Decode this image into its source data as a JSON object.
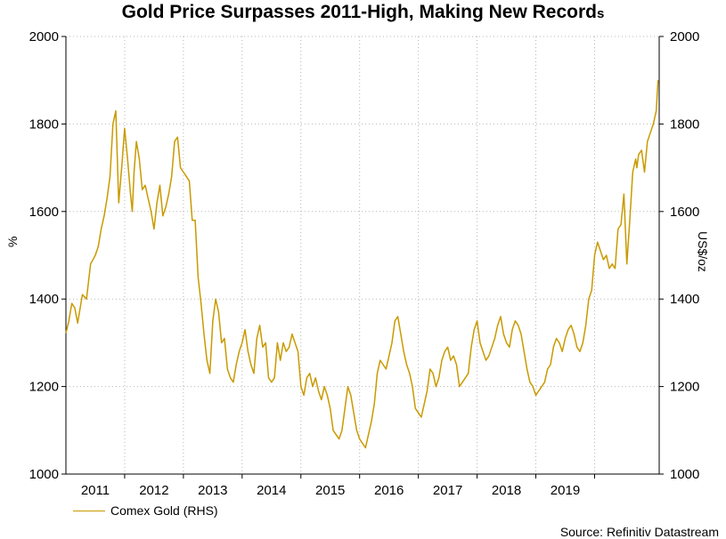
{
  "title_main": "Gold Price Surpasses 2011-High, Making New Record",
  "title_tail": "s",
  "source": "Source: Refinitiv Datastream",
  "colors": {
    "series": "#C99A00",
    "grid": "#b5b5b5",
    "axis": "#000000"
  },
  "chart_data": {
    "type": "line",
    "title": "Gold Price Surpasses 2011-High, Making New Records",
    "ylabel_left": "%",
    "ylabel_right": "US$/oz",
    "ylim": [
      1000,
      2000
    ],
    "yticks": [
      "1000",
      "1200",
      "1400",
      "1600",
      "1800",
      "2000"
    ],
    "xlim": [
      2010.5,
      2020.6
    ],
    "xtick_labels": [
      "2011",
      "2012",
      "2013",
      "2014",
      "2015",
      "2016",
      "2017",
      "2018",
      "2019"
    ],
    "xtick_positions": [
      2011.0,
      2012.0,
      2013.0,
      2014.0,
      2015.0,
      2016.0,
      2017.0,
      2018.0,
      2019.0
    ],
    "grid": true,
    "legend": "bottom-left",
    "series": [
      {
        "name": "Comex Gold (RHS)",
        "x": [
          2010.5,
          2010.55,
          2010.6,
          2010.65,
          2010.7,
          2010.78,
          2010.85,
          2010.92,
          2011.0,
          2011.05,
          2011.1,
          2011.15,
          2011.2,
          2011.25,
          2011.3,
          2011.35,
          2011.4,
          2011.45,
          2011.5,
          2011.55,
          2011.6,
          2011.63,
          2011.66,
          2011.7,
          2011.75,
          2011.8,
          2011.85,
          2011.9,
          2011.95,
          2012.0,
          2012.05,
          2012.1,
          2012.15,
          2012.2,
          2012.25,
          2012.3,
          2012.35,
          2012.4,
          2012.45,
          2012.5,
          2012.55,
          2012.6,
          2012.65,
          2012.7,
          2012.75,
          2012.8,
          2012.85,
          2012.9,
          2012.95,
          2013.0,
          2013.05,
          2013.1,
          2013.15,
          2013.2,
          2013.25,
          2013.3,
          2013.35,
          2013.4,
          2013.45,
          2013.5,
          2013.55,
          2013.6,
          2013.65,
          2013.7,
          2013.75,
          2013.8,
          2013.85,
          2013.9,
          2013.95,
          2014.0,
          2014.05,
          2014.1,
          2014.15,
          2014.2,
          2014.25,
          2014.3,
          2014.35,
          2014.4,
          2014.45,
          2014.5,
          2014.55,
          2014.6,
          2014.65,
          2014.7,
          2014.75,
          2014.8,
          2014.85,
          2014.9,
          2014.95,
          2015.0,
          2015.05,
          2015.1,
          2015.15,
          2015.2,
          2015.25,
          2015.3,
          2015.35,
          2015.4,
          2015.45,
          2015.5,
          2015.55,
          2015.6,
          2015.65,
          2015.7,
          2015.75,
          2015.8,
          2015.85,
          2015.9,
          2015.95,
          2016.0,
          2016.05,
          2016.1,
          2016.15,
          2016.2,
          2016.25,
          2016.3,
          2016.35,
          2016.4,
          2016.45,
          2016.5,
          2016.55,
          2016.6,
          2016.65,
          2016.7,
          2016.75,
          2016.8,
          2016.85,
          2016.9,
          2016.95,
          2017.0,
          2017.05,
          2017.1,
          2017.15,
          2017.2,
          2017.25,
          2017.3,
          2017.35,
          2017.4,
          2017.45,
          2017.5,
          2017.55,
          2017.6,
          2017.65,
          2017.7,
          2017.75,
          2017.8,
          2017.85,
          2017.9,
          2017.95,
          2018.0,
          2018.05,
          2018.1,
          2018.15,
          2018.2,
          2018.25,
          2018.3,
          2018.35,
          2018.4,
          2018.45,
          2018.5,
          2018.55,
          2018.6,
          2018.65,
          2018.7,
          2018.75,
          2018.8,
          2018.85,
          2018.9,
          2018.95,
          2019.0,
          2019.05,
          2019.1,
          2019.15,
          2019.2,
          2019.25,
          2019.3,
          2019.35,
          2019.4,
          2019.45,
          2019.5,
          2019.55,
          2019.6,
          2019.65,
          2019.7,
          2019.75,
          2019.8,
          2019.85,
          2019.9,
          2019.95,
          2020.0,
          2020.05,
          2020.1,
          2020.15,
          2020.2,
          2020.22,
          2020.25,
          2020.3,
          2020.35,
          2020.4,
          2020.45,
          2020.5,
          2020.55,
          2020.58
        ],
        "values": [
          1322,
          1350,
          1390,
          1380,
          1345,
          1410,
          1400,
          1480,
          1500,
          1520,
          1560,
          1590,
          1630,
          1680,
          1800,
          1830,
          1620,
          1700,
          1790,
          1720,
          1640,
          1600,
          1690,
          1760,
          1720,
          1650,
          1660,
          1630,
          1600,
          1560,
          1620,
          1660,
          1590,
          1610,
          1640,
          1680,
          1760,
          1770,
          1700,
          1690,
          1680,
          1670,
          1580,
          1580,
          1450,
          1390,
          1320,
          1260,
          1230,
          1350,
          1400,
          1370,
          1300,
          1310,
          1240,
          1220,
          1210,
          1250,
          1280,
          1300,
          1330,
          1280,
          1250,
          1230,
          1310,
          1340,
          1290,
          1300,
          1220,
          1210,
          1220,
          1300,
          1260,
          1300,
          1280,
          1290,
          1320,
          1300,
          1280,
          1200,
          1180,
          1220,
          1230,
          1200,
          1220,
          1190,
          1170,
          1200,
          1180,
          1150,
          1100,
          1090,
          1080,
          1100,
          1150,
          1200,
          1180,
          1140,
          1100,
          1080,
          1070,
          1060,
          1090,
          1120,
          1160,
          1230,
          1260,
          1250,
          1240,
          1270,
          1300,
          1350,
          1360,
          1320,
          1280,
          1250,
          1230,
          1200,
          1150,
          1140,
          1130,
          1160,
          1190,
          1240,
          1230,
          1200,
          1220,
          1260,
          1280,
          1290,
          1260,
          1270,
          1250,
          1200,
          1210,
          1220,
          1230,
          1290,
          1330,
          1350,
          1300,
          1280,
          1260,
          1270,
          1290,
          1310,
          1340,
          1360,
          1320,
          1300,
          1290,
          1330,
          1350,
          1340,
          1320,
          1280,
          1240,
          1210,
          1200,
          1180,
          1190,
          1200,
          1210,
          1240,
          1250,
          1290,
          1310,
          1300,
          1280,
          1310,
          1330,
          1340,
          1320,
          1290,
          1280,
          1300,
          1340,
          1400,
          1420,
          1500,
          1530,
          1510,
          1490,
          1500,
          1470,
          1480,
          1470,
          1560,
          1570,
          1640,
          1480,
          1580,
          1690,
          1720,
          1700,
          1730,
          1740,
          1690,
          1760,
          1780,
          1800,
          1830,
          1900
        ]
      }
    ]
  }
}
